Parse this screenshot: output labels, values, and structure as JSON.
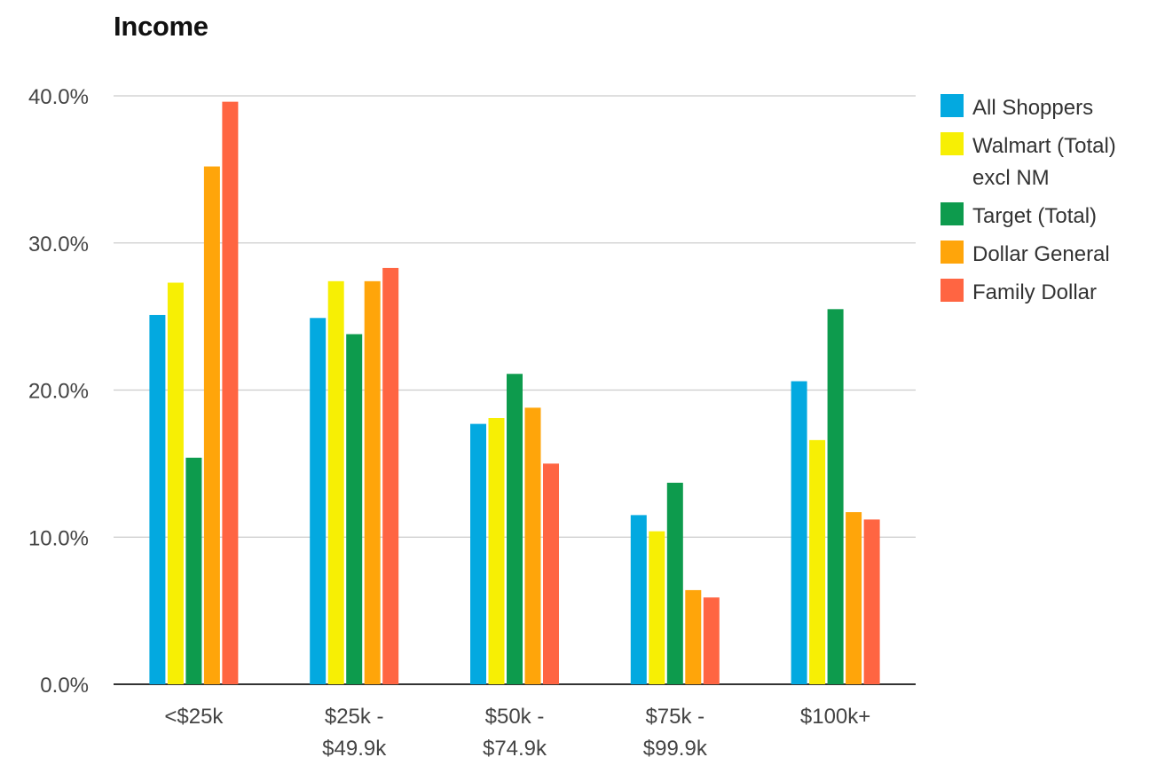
{
  "chart_data": {
    "type": "bar",
    "title": "Income",
    "xlabel": "",
    "ylabel": "",
    "categories": [
      [
        "<$25k"
      ],
      [
        "$25k -",
        "$49.9k"
      ],
      [
        "$50k -",
        "$74.9k"
      ],
      [
        "$75k -",
        "$99.9k"
      ],
      [
        "$100k+"
      ]
    ],
    "ylim": [
      0,
      40
    ],
    "yticks": [
      0,
      10,
      20,
      30,
      40
    ],
    "ytick_labels": [
      "0.0%",
      "10.0%",
      "20.0%",
      "30.0%",
      "40.0%"
    ],
    "grid": true,
    "legend_position": "right",
    "series": [
      {
        "name": [
          "All Shoppers"
        ],
        "color": "#03a9e0",
        "values": [
          25.1,
          24.9,
          17.7,
          11.5,
          20.6
        ]
      },
      {
        "name": [
          "Walmart (Total)",
          "excl NM"
        ],
        "color": "#f7ef04",
        "values": [
          27.3,
          27.4,
          18.1,
          10.4,
          16.6
        ]
      },
      {
        "name": [
          "Target (Total)"
        ],
        "color": "#0d9b4d",
        "values": [
          15.4,
          23.8,
          21.1,
          13.7,
          25.5
        ]
      },
      {
        "name": [
          "Dollar General"
        ],
        "color": "#ffa50a",
        "values": [
          35.2,
          27.4,
          18.8,
          6.4,
          11.7
        ]
      },
      {
        "name": [
          "Family Dollar"
        ],
        "color": "#ff6542",
        "values": [
          39.6,
          28.3,
          15.0,
          5.9,
          11.2
        ]
      }
    ]
  }
}
